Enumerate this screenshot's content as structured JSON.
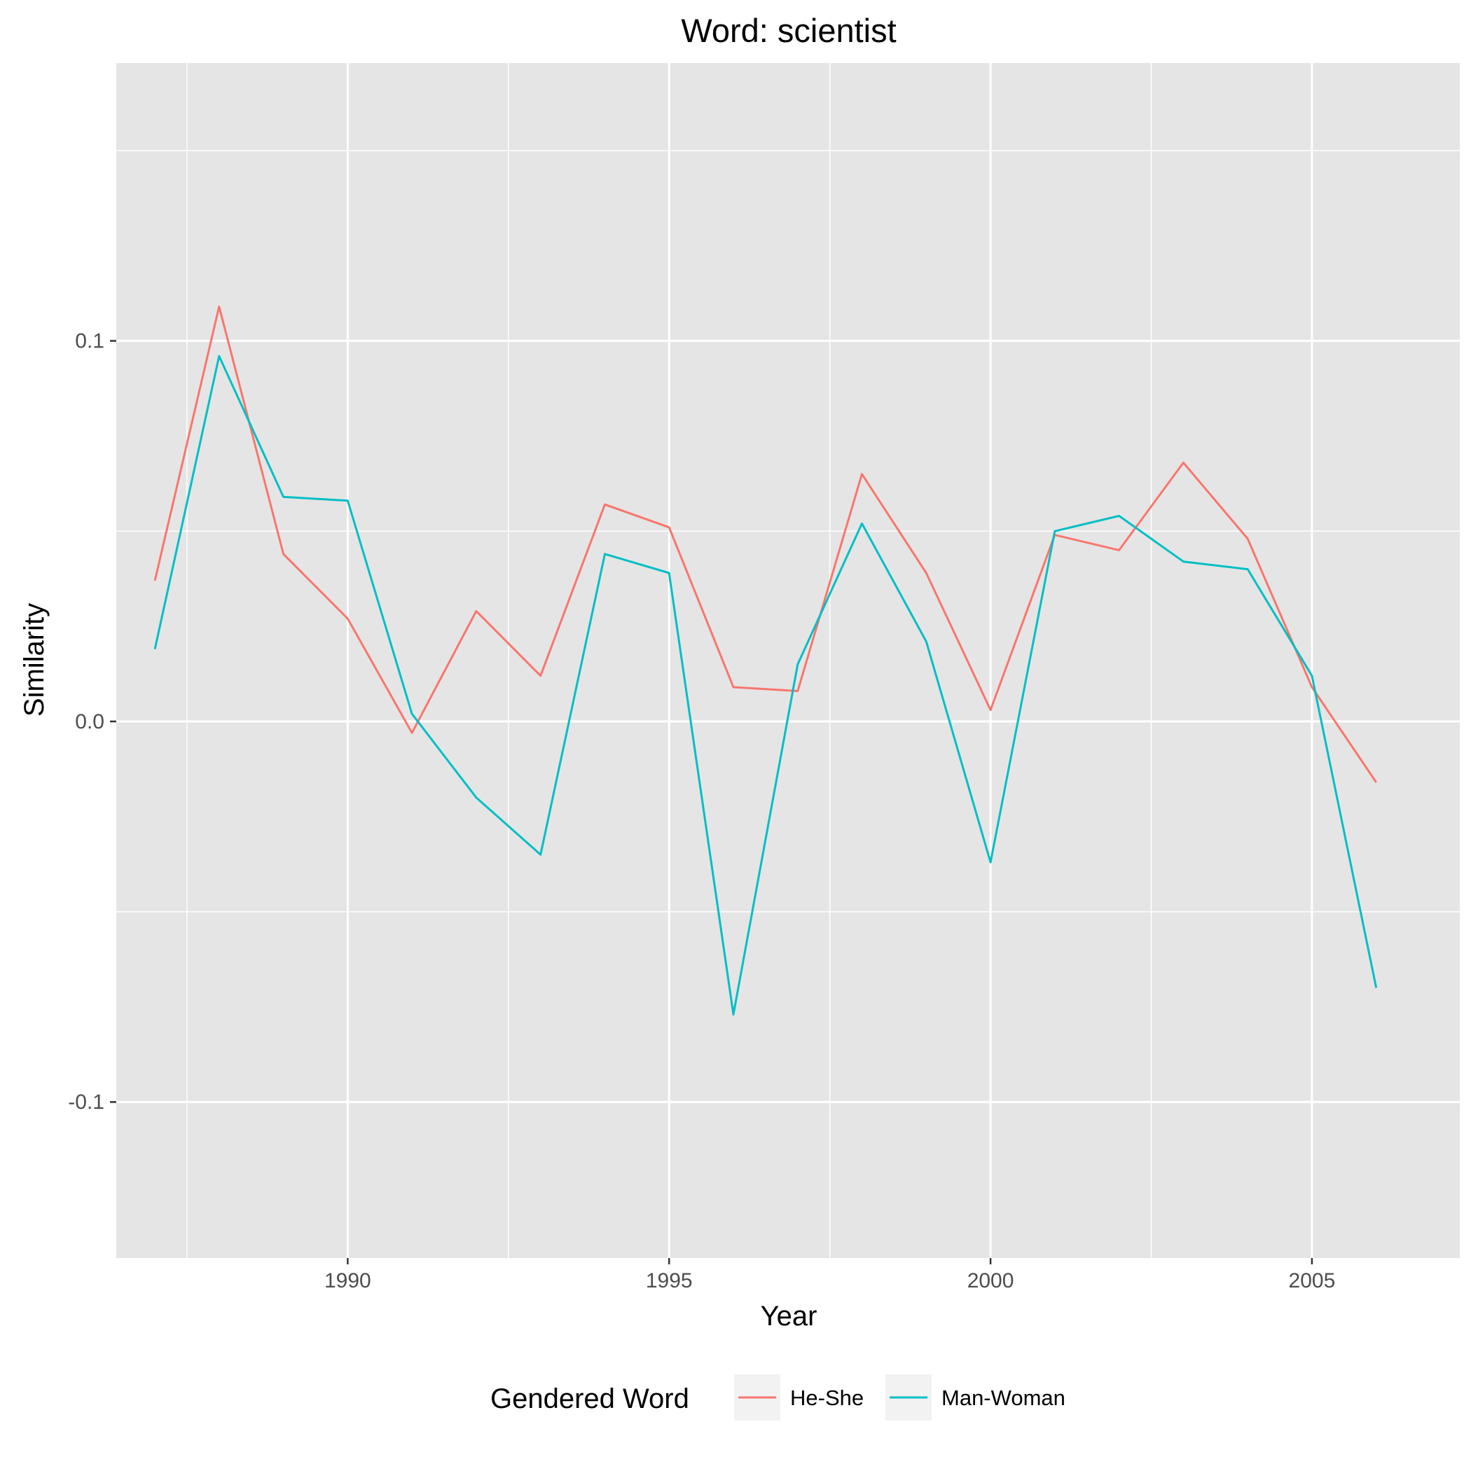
{
  "chart_data": {
    "type": "line",
    "title": "Word: scientist",
    "xlabel": "Year",
    "ylabel": "Similarity",
    "xlim": [
      1986.4,
      2007.3
    ],
    "ylim": [
      -0.141,
      0.173
    ],
    "x_major_ticks": [
      1990,
      1995,
      2000,
      2005
    ],
    "x_tick_labels": [
      "1990",
      "1995",
      "2000",
      "2005"
    ],
    "x_minor_ticks": [
      1987.5,
      1992.5,
      1997.5,
      2002.5
    ],
    "y_major_ticks": [
      -0.1,
      0.0,
      0.1
    ],
    "y_tick_labels": [
      "-0.1",
      "0.0",
      "0.1"
    ],
    "y_minor_ticks": [
      -0.05,
      0.05,
      0.15
    ],
    "grid": true,
    "legend_position": "bottom",
    "legend_title": "Gendered Word",
    "x": [
      1987,
      1988,
      1989,
      1990,
      1991,
      1992,
      1993,
      1994,
      1995,
      1996,
      1997,
      1998,
      1999,
      2000,
      2001,
      2002,
      2003,
      2004,
      2005,
      2006
    ],
    "series": [
      {
        "name": "He-She",
        "color": "#F8766D",
        "values": [
          0.037,
          0.109,
          0.044,
          0.027,
          -0.003,
          0.029,
          0.012,
          0.057,
          0.051,
          0.009,
          0.008,
          0.065,
          0.039,
          0.003,
          0.049,
          0.045,
          0.068,
          0.048,
          0.009,
          -0.016
        ]
      },
      {
        "name": "Man-Woman",
        "color": "#00BFC4",
        "values": [
          0.019,
          0.096,
          0.059,
          0.058,
          0.002,
          -0.02,
          -0.035,
          0.044,
          0.039,
          -0.077,
          0.015,
          0.052,
          0.021,
          -0.037,
          0.05,
          0.054,
          0.042,
          0.04,
          0.012,
          -0.07
        ]
      }
    ]
  }
}
